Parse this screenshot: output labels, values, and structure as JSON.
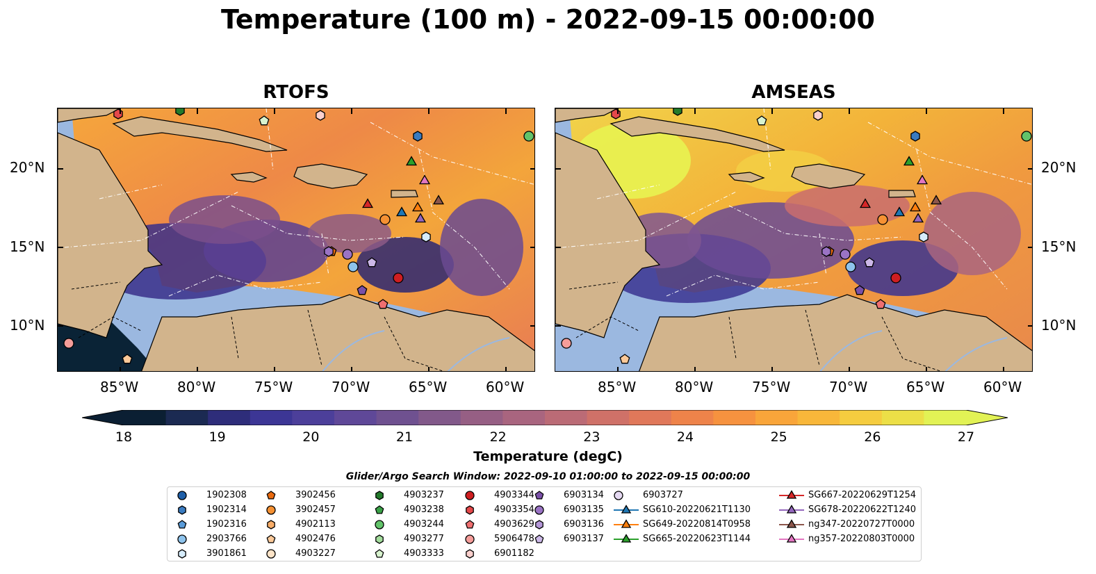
{
  "title": "Temperature (100 m) - 2022-09-15 00:00:00",
  "panels": [
    {
      "title": "RTOFS",
      "id": "rtofs"
    },
    {
      "title": "AMSEAS",
      "id": "amseas"
    }
  ],
  "lon_ticks": [
    "85°W",
    "80°W",
    "75°W",
    "70°W",
    "65°W",
    "60°W"
  ],
  "lat_ticks": [
    "20°N",
    "15°N",
    "10°N"
  ],
  "colorbar": {
    "ticks": [
      "18",
      "19",
      "20",
      "21",
      "22",
      "23",
      "24",
      "25",
      "26",
      "27"
    ],
    "label": "Temperature (degC)",
    "colors": [
      "#0b1f33",
      "#1b2a52",
      "#2e2d7a",
      "#3c3695",
      "#4c3f9a",
      "#5f4898",
      "#6f5190",
      "#82598a",
      "#965f84",
      "#a9657f",
      "#bb6b76",
      "#cf7168",
      "#e0785a",
      "#ee834a",
      "#f6923f",
      "#f9a53a",
      "#f8b73a",
      "#f5cc3f",
      "#ecdf47",
      "#e2f255"
    ]
  },
  "search_window": "Glider/Argo Search Window: 2022-09-10 01:00:00 to 2022-09-15 00:00:00",
  "legend": {
    "columns": [
      [
        {
          "label": "1902308",
          "marker": "circle",
          "color": "#1f5fa8"
        },
        {
          "label": "1902314",
          "marker": "hexagon",
          "color": "#3a7bc0"
        },
        {
          "label": "1902316",
          "marker": "pentagon",
          "color": "#5a9bd8"
        },
        {
          "label": "2903766",
          "marker": "circle",
          "color": "#8ec3ec"
        },
        {
          "label": "3901861",
          "marker": "hexagon",
          "color": "#d6ecfb"
        }
      ],
      [
        {
          "label": "3902456",
          "marker": "pentagon",
          "color": "#e96a0f"
        },
        {
          "label": "3902457",
          "marker": "circle",
          "color": "#f59133"
        },
        {
          "label": "4902113",
          "marker": "hexagon",
          "color": "#f8ad68"
        },
        {
          "label": "4902476",
          "marker": "pentagon",
          "color": "#fbc999"
        },
        {
          "label": "4903227",
          "marker": "circle",
          "color": "#fde4c8"
        }
      ],
      [
        {
          "label": "4903237",
          "marker": "hexagon",
          "color": "#237a2b"
        },
        {
          "label": "4903238",
          "marker": "pentagon",
          "color": "#3aa147"
        },
        {
          "label": "4903244",
          "marker": "circle",
          "color": "#62c36a"
        },
        {
          "label": "4903277",
          "marker": "hexagon",
          "color": "#a3dc9c"
        },
        {
          "label": "4903333",
          "marker": "pentagon",
          "color": "#d8f3cf"
        }
      ],
      [
        {
          "label": "4903344",
          "marker": "circle",
          "color": "#cf1e21"
        },
        {
          "label": "4903354",
          "marker": "hexagon",
          "color": "#e5484a"
        },
        {
          "label": "4903629",
          "marker": "pentagon",
          "color": "#ef6f70"
        },
        {
          "label": "5906478",
          "marker": "circle",
          "color": "#f59d9a"
        },
        {
          "label": "6901182",
          "marker": "hexagon",
          "color": "#fbd0cd"
        }
      ],
      [
        {
          "label": "6903134",
          "marker": "pentagon",
          "color": "#7a50a8"
        },
        {
          "label": "6903135",
          "marker": "circle",
          "color": "#9a73c4"
        },
        {
          "label": "6903136",
          "marker": "hexagon",
          "color": "#b497d8"
        },
        {
          "label": "6903137",
          "marker": "pentagon",
          "color": "#ccb8e8"
        }
      ],
      [
        {
          "label": "6903727",
          "marker": "circle",
          "color": "#e5d9f2"
        },
        {
          "label": "SG610-20220621T1130",
          "marker": "triangle-line",
          "color": "#1f77b4"
        },
        {
          "label": "SG649-20220814T0958",
          "marker": "triangle-line",
          "color": "#ff7f0e"
        },
        {
          "label": "SG665-20220623T1144",
          "marker": "triangle-line",
          "color": "#2ca02c"
        }
      ],
      [
        {
          "label": "SG667-20220629T1254",
          "marker": "triangle-line",
          "color": "#d62728"
        },
        {
          "label": "SG678-20220622T1240",
          "marker": "triangle-line",
          "color": "#9467bd"
        },
        {
          "label": "ng347-20220727T0000",
          "marker": "triangle-line",
          "color": "#8c564b"
        },
        {
          "label": "ng357-20220803T0000",
          "marker": "triangle-line",
          "color": "#e377c2"
        }
      ]
    ]
  },
  "colors": {
    "land": "#d2b48c",
    "ocean_background": "#9bb8e0",
    "open_ocean_dark": "#0a2336"
  }
}
